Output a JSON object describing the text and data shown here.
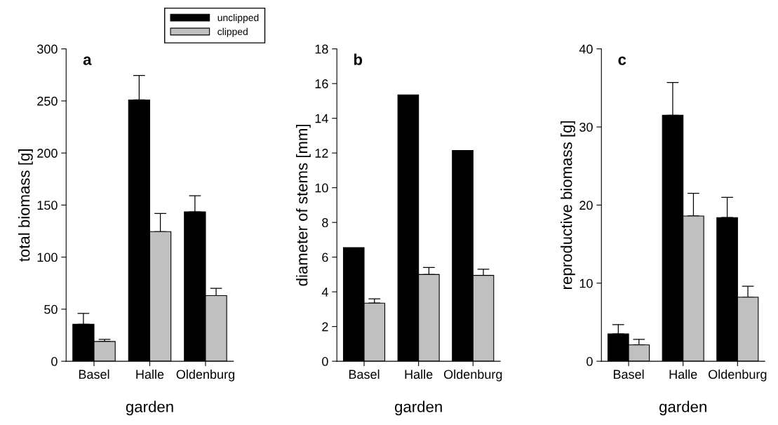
{
  "chart_data": [
    {
      "type": "bar",
      "title": "a",
      "xlabel": "garden",
      "ylabel": "total biomass [g]",
      "categories": [
        "Basel",
        "Halle",
        "Oldenburg"
      ],
      "ylim": [
        0,
        300
      ],
      "yticks": [
        0,
        50,
        100,
        150,
        200,
        250,
        300
      ],
      "legend": "top right",
      "series": [
        {
          "name": "unclipped",
          "color": "#000000",
          "values": [
            35.5,
            251,
            143.5
          ],
          "errors": [
            [
              35.5,
              46
            ],
            [
              251,
              274.5
            ],
            [
              143.5,
              159
            ]
          ]
        },
        {
          "name": "clipped",
          "color": "#c0c0c0",
          "values": [
            19,
            124.5,
            63
          ],
          "errors": [
            [
              19,
              21
            ],
            [
              124.5,
              142
            ],
            [
              63,
              70
            ]
          ]
        }
      ]
    },
    {
      "type": "bar",
      "title": "b",
      "xlabel": "garden",
      "ylabel": "diameter of stems [mm]",
      "categories": [
        "Basel",
        "Halle",
        "Oldenburg"
      ],
      "ylim": [
        0,
        18
      ],
      "yticks": [
        0,
        2,
        4,
        6,
        8,
        10,
        12,
        14,
        16,
        18
      ],
      "series": [
        {
          "color": "#000000",
          "values": [
            6.55,
            15.35,
            12.15
          ]
        },
        {
          "color": "#c0c0c0",
          "values": [
            3.35,
            5.0,
            4.95
          ],
          "errors": [
            [
              3.35,
              3.6
            ],
            [
              5.0,
              5.4
            ],
            [
              4.95,
              5.3
            ]
          ]
        }
      ]
    },
    {
      "type": "bar",
      "title": "c",
      "xlabel": "garden",
      "ylabel": "reproductive biomass [g]",
      "categories": [
        "Basel",
        "Halle",
        "Oldenburg"
      ],
      "ylim": [
        0,
        40
      ],
      "yticks": [
        0,
        10,
        20,
        30,
        40
      ],
      "series": [
        {
          "color": "#000000",
          "values": [
            3.5,
            31.5,
            18.4
          ],
          "errors": [
            [
              3.5,
              4.7
            ],
            [
              31.5,
              35.7
            ],
            [
              18.4,
              21
            ]
          ]
        },
        {
          "color": "#c0c0c0",
          "values": [
            2.1,
            18.6,
            8.2
          ],
          "errors": [
            [
              2.1,
              2.8
            ],
            [
              18.6,
              21.5
            ],
            [
              8.2,
              9.6
            ]
          ]
        }
      ]
    }
  ]
}
